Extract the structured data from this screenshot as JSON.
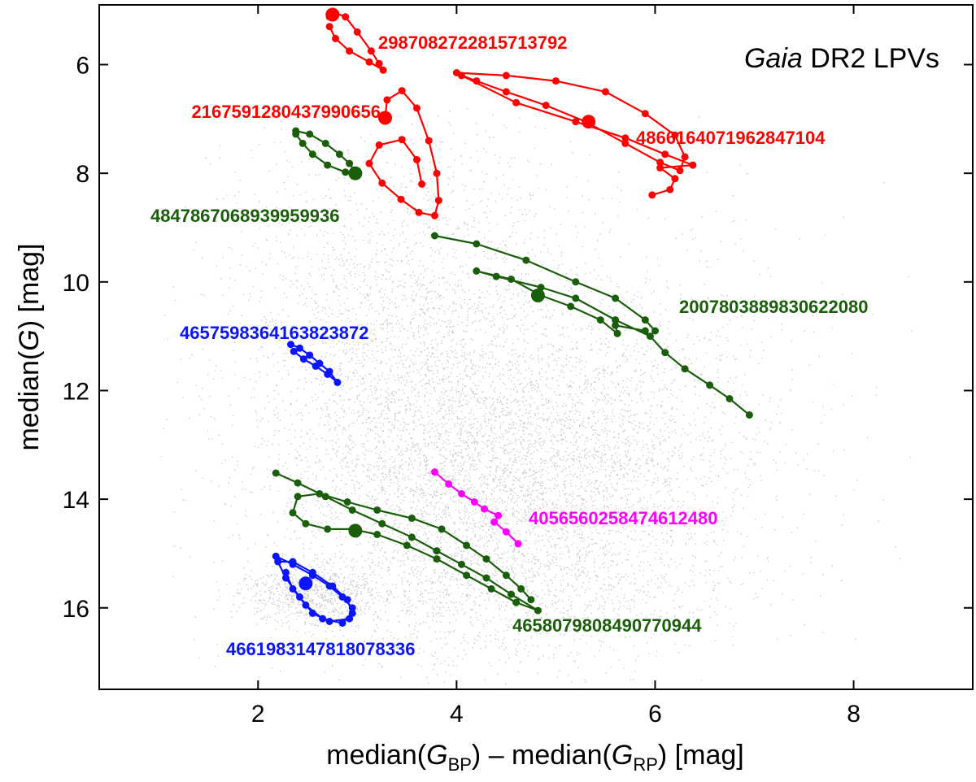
{
  "chart_data": {
    "type": "scatter",
    "title_italic": "Gaia",
    "title_rest": " DR2 LPVs",
    "xlabel": {
      "p1": "median(",
      "p2": "G",
      "p3": "BP",
      "p4": ") – median(",
      "p5": "G",
      "p6": "RP",
      "p7": ")  [mag]"
    },
    "ylabel": {
      "p1": "median(",
      "p2": "G",
      "p3": ")  [mag]"
    },
    "xlim": [
      0.4,
      9.2
    ],
    "ylim": [
      17.5,
      4.9
    ],
    "y_inverted": true,
    "xticks": [
      "2",
      "4",
      "6",
      "8"
    ],
    "yticks": [
      "6",
      "8",
      "10",
      "12",
      "14",
      "16"
    ],
    "background": "grey scatter of the Gaia DR2 long-period-variable sample",
    "series": [
      {
        "name": "2987082722815713792",
        "color": "#ff0000",
        "points": [
          [
            2.72,
            5.12
          ],
          [
            2.78,
            5.05
          ],
          [
            2.88,
            5.12
          ],
          [
            3.0,
            5.4
          ],
          [
            3.14,
            5.75
          ],
          [
            3.22,
            5.98
          ],
          [
            3.26,
            6.1
          ],
          [
            3.12,
            5.95
          ],
          [
            2.92,
            5.75
          ],
          [
            2.78,
            5.52
          ],
          [
            2.72,
            5.3
          ]
        ],
        "marker": [
          2.75,
          5.08
        ]
      },
      {
        "name": "2167591280437990656",
        "color": "#ff0000",
        "points": [
          [
            3.28,
            6.98
          ],
          [
            3.3,
            6.65
          ],
          [
            3.45,
            6.48
          ],
          [
            3.6,
            6.8
          ],
          [
            3.72,
            7.4
          ],
          [
            3.8,
            8.0
          ],
          [
            3.82,
            8.5
          ],
          [
            3.78,
            8.78
          ],
          [
            3.62,
            8.72
          ],
          [
            3.44,
            8.48
          ],
          [
            3.25,
            8.18
          ],
          [
            3.12,
            7.82
          ],
          [
            3.22,
            7.48
          ],
          [
            3.45,
            7.38
          ],
          [
            3.6,
            7.75
          ],
          [
            3.65,
            8.2
          ]
        ],
        "marker": [
          3.28,
          6.98
        ]
      },
      {
        "name": "4866164071962847104",
        "color": "#ff0000",
        "points": [
          [
            4.0,
            6.15
          ],
          [
            4.5,
            6.2
          ],
          [
            5.0,
            6.3
          ],
          [
            5.5,
            6.5
          ],
          [
            5.9,
            6.9
          ],
          [
            6.2,
            7.3
          ],
          [
            6.3,
            7.7
          ],
          [
            6.25,
            7.95
          ],
          [
            6.05,
            7.8
          ],
          [
            5.7,
            7.45
          ],
          [
            5.3,
            7.05
          ],
          [
            4.9,
            6.75
          ],
          [
            4.5,
            6.5
          ],
          [
            4.2,
            6.3
          ],
          [
            4.05,
            6.2
          ],
          [
            4.6,
            6.7
          ],
          [
            5.2,
            7.05
          ],
          [
            5.7,
            7.35
          ],
          [
            6.1,
            7.65
          ],
          [
            6.38,
            7.85
          ],
          [
            6.05,
            7.9
          ],
          [
            6.2,
            8.1
          ],
          [
            6.15,
            8.3
          ],
          [
            5.97,
            8.4
          ]
        ],
        "marker": [
          5.33,
          7.05
        ]
      },
      {
        "name": "4847867068939959936",
        "color": "#1a5e0b",
        "points": [
          [
            2.38,
            7.22
          ],
          [
            2.52,
            7.28
          ],
          [
            2.68,
            7.45
          ],
          [
            2.82,
            7.65
          ],
          [
            2.92,
            7.82
          ],
          [
            3.0,
            8.02
          ],
          [
            2.88,
            7.98
          ],
          [
            2.7,
            7.85
          ],
          [
            2.55,
            7.65
          ],
          [
            2.45,
            7.45
          ],
          [
            2.38,
            7.28
          ]
        ],
        "marker": [
          2.98,
          8.0
        ]
      },
      {
        "name": "2007803889830622080",
        "color": "#1a5e0b",
        "points": [
          [
            3.78,
            9.15
          ],
          [
            4.2,
            9.3
          ],
          [
            4.7,
            9.6
          ],
          [
            5.2,
            10.0
          ],
          [
            5.6,
            10.3
          ],
          [
            5.9,
            10.7
          ],
          [
            6.0,
            10.9
          ],
          [
            5.95,
            11.0
          ],
          [
            5.6,
            10.7
          ],
          [
            5.2,
            10.3
          ],
          [
            4.85,
            10.1
          ],
          [
            4.4,
            9.9
          ],
          [
            4.2,
            9.8
          ],
          [
            4.55,
            9.95
          ],
          [
            4.85,
            10.25
          ],
          [
            5.15,
            10.45
          ],
          [
            5.45,
            10.7
          ],
          [
            5.62,
            10.95
          ],
          [
            5.6,
            10.8
          ],
          [
            5.9,
            10.9
          ],
          [
            6.1,
            11.3
          ],
          [
            6.3,
            11.6
          ],
          [
            6.55,
            11.9
          ],
          [
            6.75,
            12.15
          ],
          [
            6.95,
            12.45
          ]
        ],
        "marker": [
          4.82,
          10.25
        ]
      },
      {
        "name": "4657598364163823872",
        "color": "#0a14ff",
        "points": [
          [
            2.33,
            11.15
          ],
          [
            2.42,
            11.22
          ],
          [
            2.52,
            11.35
          ],
          [
            2.62,
            11.5
          ],
          [
            2.72,
            11.65
          ],
          [
            2.8,
            11.85
          ],
          [
            2.7,
            11.7
          ],
          [
            2.58,
            11.55
          ],
          [
            2.46,
            11.42
          ],
          [
            2.36,
            11.28
          ]
        ],
        "marker": null
      },
      {
        "name": "4056560258474612480",
        "color": "#ff00ff",
        "points": [
          [
            3.78,
            13.5
          ],
          [
            3.92,
            13.72
          ],
          [
            4.05,
            13.9
          ],
          [
            4.18,
            14.05
          ],
          [
            4.28,
            14.18
          ],
          [
            4.42,
            14.3
          ],
          [
            4.38,
            14.42
          ],
          [
            4.5,
            14.6
          ],
          [
            4.62,
            14.82
          ]
        ],
        "marker": null
      },
      {
        "name": "4658079808490770944",
        "color": "#1a5e0b",
        "points": [
          [
            2.18,
            13.52
          ],
          [
            2.4,
            13.7
          ],
          [
            2.68,
            13.95
          ],
          [
            2.95,
            14.2
          ],
          [
            3.25,
            14.45
          ],
          [
            3.55,
            14.7
          ],
          [
            3.8,
            14.95
          ],
          [
            4.05,
            15.2
          ],
          [
            4.3,
            15.45
          ],
          [
            4.55,
            15.75
          ],
          [
            4.82,
            16.05
          ],
          [
            4.6,
            15.9
          ],
          [
            4.35,
            15.65
          ],
          [
            4.1,
            15.4
          ],
          [
            3.8,
            15.1
          ],
          [
            3.5,
            14.85
          ],
          [
            3.2,
            14.65
          ],
          [
            2.95,
            14.55
          ],
          [
            2.7,
            14.55
          ],
          [
            2.48,
            14.45
          ],
          [
            2.35,
            14.25
          ],
          [
            2.4,
            13.95
          ],
          [
            2.62,
            13.9
          ],
          [
            2.9,
            14.05
          ],
          [
            3.2,
            14.2
          ],
          [
            3.55,
            14.35
          ],
          [
            3.85,
            14.55
          ],
          [
            4.1,
            14.85
          ],
          [
            4.3,
            15.1
          ],
          [
            4.5,
            15.4
          ],
          [
            4.65,
            15.65
          ],
          [
            4.75,
            15.85
          ]
        ],
        "marker": [
          2.98,
          14.58
        ]
      },
      {
        "name": "4661983147818078336",
        "color": "#0a14ff",
        "points": [
          [
            2.18,
            15.05
          ],
          [
            2.35,
            15.2
          ],
          [
            2.55,
            15.4
          ],
          [
            2.72,
            15.6
          ],
          [
            2.85,
            15.8
          ],
          [
            2.95,
            16.0
          ],
          [
            2.92,
            16.2
          ],
          [
            2.72,
            16.25
          ],
          [
            2.55,
            16.1
          ],
          [
            2.42,
            15.8
          ],
          [
            2.28,
            15.45
          ],
          [
            2.2,
            15.15
          ],
          [
            2.35,
            15.15
          ],
          [
            2.55,
            15.35
          ],
          [
            2.75,
            15.6
          ],
          [
            2.9,
            15.85
          ],
          [
            2.95,
            16.1
          ],
          [
            2.85,
            16.28
          ],
          [
            2.65,
            16.2
          ],
          [
            2.48,
            15.95
          ],
          [
            2.35,
            15.65
          ],
          [
            2.28,
            15.35
          ]
        ],
        "marker": [
          2.48,
          15.55
        ]
      }
    ]
  }
}
